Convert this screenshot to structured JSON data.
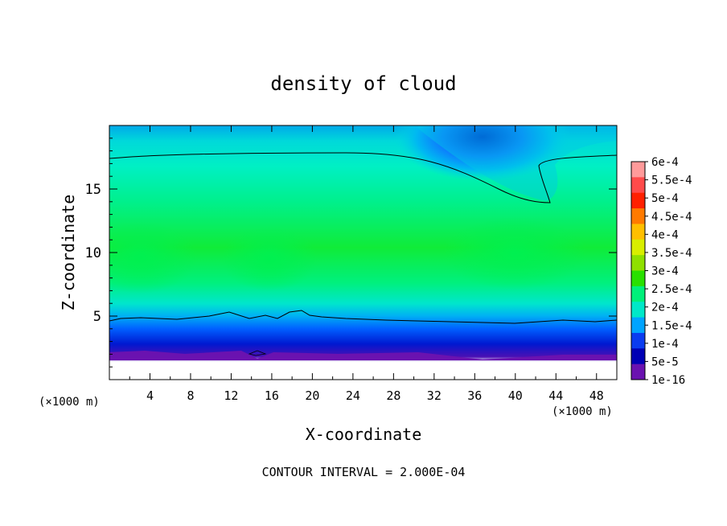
{
  "chart_data": {
    "type": "heatmap",
    "title": "density of cloud",
    "xlabel": "X-coordinate",
    "ylabel": "Z-coordinate",
    "x_unit_left": "(×1000 m)",
    "x_unit_right": "(×1000 m)",
    "footer": "CONTOUR INTERVAL = 2.000E-04",
    "xlim": [
      0,
      50
    ],
    "ylim": [
      0,
      20
    ],
    "x_ticks": [
      4,
      8,
      12,
      16,
      20,
      24,
      28,
      32,
      36,
      40,
      44,
      48
    ],
    "x_tick_labels": [
      "4",
      "8",
      "12",
      "16",
      "20",
      "24",
      "28",
      "32",
      "36",
      "40",
      "44",
      "48"
    ],
    "y_ticks": [
      5,
      10,
      15
    ],
    "y_tick_labels": [
      "5",
      "10",
      "15"
    ],
    "colorbar": {
      "labels": [
        "6e-4",
        "5.5e-4",
        "5e-4",
        "4.5e-4",
        "4e-4",
        "3.5e-4",
        "3e-4",
        "2.5e-4",
        "2e-4",
        "1.5e-4",
        "1e-4",
        "5e-5",
        "1e-16"
      ],
      "colors": [
        "#ff9a9a",
        "#ff4a4a",
        "#ff2000",
        "#ff7a00",
        "#ffbf00",
        "#d8ee00",
        "#8fe000",
        "#29e000",
        "#00f07a",
        "#00e8c8",
        "#00a4ff",
        "#0a3cf0",
        "#0000b4",
        "#6a12b0"
      ]
    },
    "contour_levels": [
      0.0002
    ],
    "grid": false,
    "legend_position": "right"
  }
}
